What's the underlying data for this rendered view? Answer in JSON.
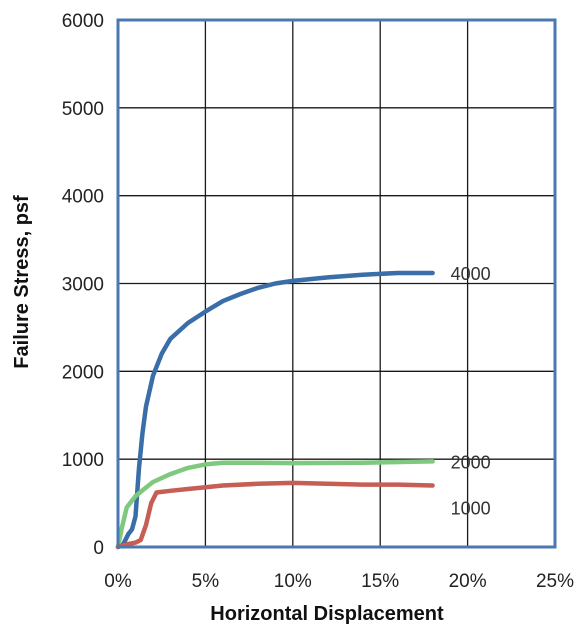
{
  "chart_data": {
    "type": "line",
    "title": "",
    "xlabel": "Horizontal Displacement",
    "ylabel": "Failure Stress, psf",
    "xlim": [
      0,
      25
    ],
    "ylim": [
      0,
      6000
    ],
    "x_ticks": [
      0,
      5,
      10,
      15,
      20,
      25
    ],
    "x_tick_labels": [
      "0%",
      "5%",
      "10%",
      "15%",
      "20%",
      "25%"
    ],
    "y_ticks": [
      0,
      1000,
      2000,
      3000,
      4000,
      5000,
      6000
    ],
    "y_tick_labels": [
      "0",
      "1000",
      "2000",
      "3000",
      "4000",
      "5000",
      "6000"
    ],
    "grid": true,
    "series": [
      {
        "name": "4000",
        "color": "#3a6ea8",
        "x": [
          0,
          0.3,
          0.6,
          0.8,
          1.0,
          1.2,
          1.4,
          1.6,
          2.0,
          2.5,
          3.0,
          4.0,
          5.0,
          6.0,
          7.0,
          8.0,
          9.0,
          10.0,
          12.0,
          14.0,
          16.0,
          18.0
        ],
        "values": [
          0,
          30,
          150,
          200,
          350,
          900,
          1300,
          1600,
          1950,
          2200,
          2370,
          2550,
          2680,
          2800,
          2880,
          2950,
          3000,
          3030,
          3070,
          3100,
          3120,
          3120
        ]
      },
      {
        "name": "2000",
        "color": "#7fc97f",
        "x": [
          0,
          0.2,
          0.5,
          1.0,
          1.5,
          2.0,
          3.0,
          4.0,
          5.0,
          6.0,
          8.0,
          10.0,
          14.0,
          18.0
        ],
        "values": [
          0,
          200,
          450,
          580,
          660,
          740,
          830,
          900,
          940,
          960,
          960,
          955,
          960,
          975
        ]
      },
      {
        "name": "1000",
        "color": "#c65e55",
        "x": [
          0,
          0.5,
          1.0,
          1.3,
          1.6,
          1.9,
          2.2,
          3.0,
          4.0,
          5.0,
          6.0,
          8.0,
          10.0,
          12.0,
          14.0,
          16.0,
          18.0
        ],
        "values": [
          0,
          30,
          50,
          80,
          250,
          500,
          620,
          640,
          660,
          680,
          700,
          720,
          730,
          720,
          710,
          710,
          700
        ]
      }
    ]
  }
}
